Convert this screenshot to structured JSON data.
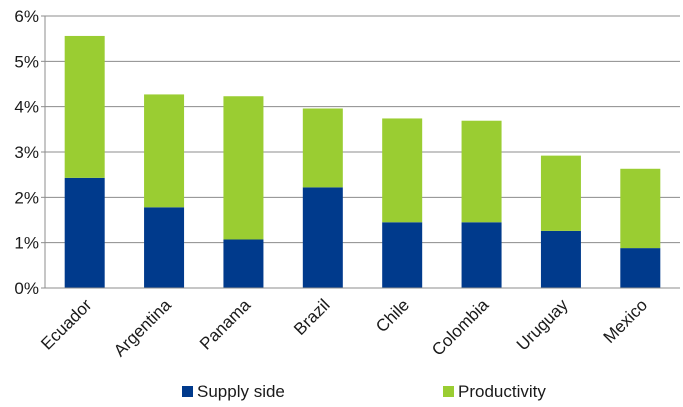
{
  "chart_data": {
    "type": "bar",
    "stacked": true,
    "categories": [
      "Ecuador",
      "Argentina",
      "Panama",
      "Brazil",
      "Chile",
      "Colombia",
      "Uruguay",
      "Mexico"
    ],
    "series": [
      {
        "name": "Supply side",
        "color": "#003a8c",
        "values": [
          2.43,
          1.78,
          1.07,
          2.22,
          1.45,
          1.45,
          1.26,
          0.88
        ]
      },
      {
        "name": "Productivity",
        "color": "#9acd32",
        "values": [
          3.13,
          2.49,
          3.16,
          1.74,
          2.29,
          2.24,
          1.66,
          1.75
        ]
      }
    ],
    "ylim": [
      0,
      6
    ],
    "yticks": [
      0,
      1,
      2,
      3,
      4,
      5,
      6
    ],
    "ytick_labels": [
      "0%",
      "1%",
      "2%",
      "3%",
      "4%",
      "5%",
      "6%"
    ],
    "grid": true,
    "legend_position": "bottom",
    "title": "",
    "xlabel": "",
    "ylabel": ""
  }
}
